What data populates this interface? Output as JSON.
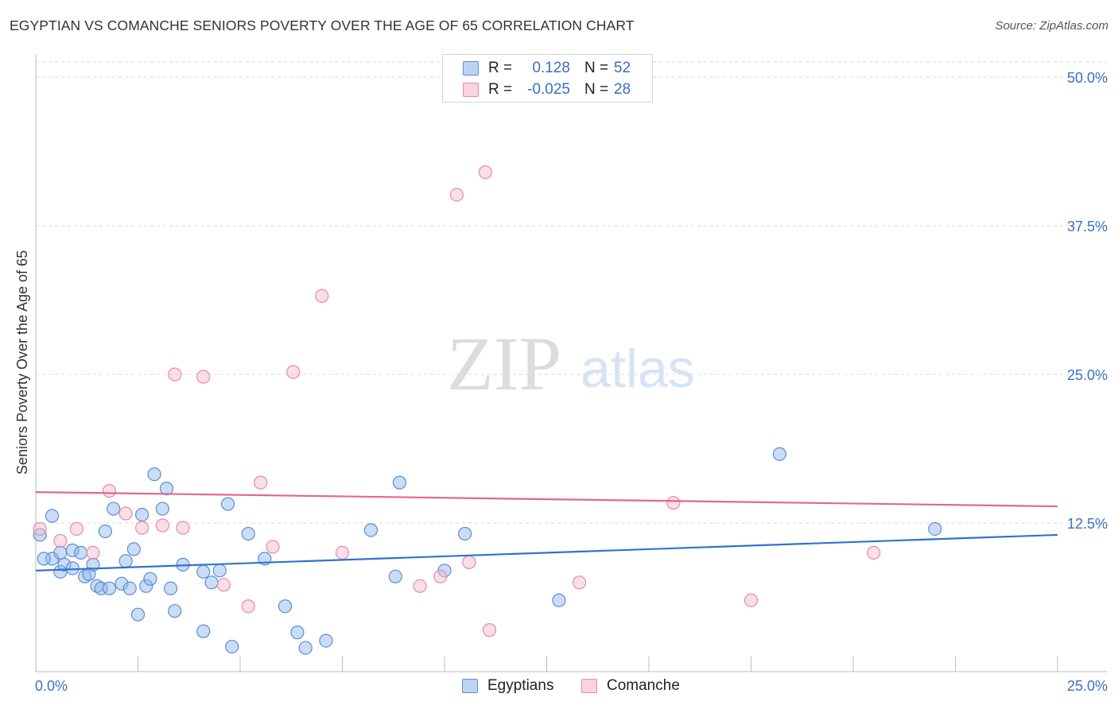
{
  "header": {
    "title": "EGYPTIAN VS COMANCHE SENIORS POVERTY OVER THE AGE OF 65 CORRELATION CHART",
    "source": "Source: ZipAtlas.com"
  },
  "watermark": {
    "zip": "ZIP",
    "atlas": "atlas"
  },
  "legend": {
    "rows": [
      {
        "r_label": "R =",
        "r_value": "0.128",
        "n_label": "N =",
        "n_value": "52"
      },
      {
        "r_label": "R =",
        "r_value": "-0.025",
        "n_label": "N =",
        "n_value": "28"
      }
    ]
  },
  "chart_data": {
    "type": "scatter",
    "ylabel": "Seniors Poverty Over the Age of 65",
    "xlim": [
      0,
      25
    ],
    "ylim": [
      0,
      50
    ],
    "x_tick_labels": [
      "0.0%",
      "25.0%"
    ],
    "y_ticks": [
      12.5,
      25.0,
      37.5,
      50.0
    ],
    "y_tick_labels": [
      "12.5%",
      "25.0%",
      "37.5%",
      "50.0%"
    ],
    "grid": "horizontal dashed",
    "legend_position": "top-center",
    "series": [
      {
        "name": "Egyptians",
        "color": "#8ab4e8",
        "edge": "#5b8ed4",
        "line_color": "#2f74cc",
        "trend": [
          [
            0,
            8.5
          ],
          [
            25,
            11.5
          ]
        ],
        "points": [
          [
            0.1,
            11.5
          ],
          [
            0.4,
            9.5
          ],
          [
            0.6,
            10.0
          ],
          [
            0.6,
            8.4
          ],
          [
            0.7,
            9.0
          ],
          [
            0.9,
            10.2
          ],
          [
            0.9,
            8.7
          ],
          [
            1.1,
            10.0
          ],
          [
            1.2,
            8.0
          ],
          [
            1.3,
            8.2
          ],
          [
            1.4,
            9.0
          ],
          [
            1.5,
            7.2
          ],
          [
            1.6,
            7.0
          ],
          [
            1.7,
            11.8
          ],
          [
            1.8,
            7.0
          ],
          [
            1.9,
            13.7
          ],
          [
            2.1,
            7.4
          ],
          [
            2.2,
            9.3
          ],
          [
            2.3,
            7.0
          ],
          [
            2.4,
            10.3
          ],
          [
            2.5,
            4.8
          ],
          [
            2.6,
            13.2
          ],
          [
            2.7,
            7.2
          ],
          [
            2.8,
            7.8
          ],
          [
            2.9,
            16.6
          ],
          [
            3.1,
            13.7
          ],
          [
            3.2,
            15.4
          ],
          [
            3.3,
            7.0
          ],
          [
            3.4,
            5.1
          ],
          [
            3.6,
            9.0
          ],
          [
            4.1,
            3.4
          ],
          [
            4.1,
            8.4
          ],
          [
            4.3,
            7.5
          ],
          [
            4.5,
            8.5
          ],
          [
            4.7,
            14.1
          ],
          [
            4.8,
            2.1
          ],
          [
            5.2,
            11.6
          ],
          [
            5.6,
            9.5
          ],
          [
            6.1,
            5.5
          ],
          [
            6.4,
            3.3
          ],
          [
            6.6,
            2.0
          ],
          [
            7.1,
            2.6
          ],
          [
            8.2,
            11.9
          ],
          [
            8.8,
            8.0
          ],
          [
            8.9,
            15.9
          ],
          [
            10.0,
            8.5
          ],
          [
            10.5,
            11.6
          ],
          [
            12.8,
            6.0
          ],
          [
            18.2,
            18.3
          ],
          [
            22.0,
            12.0
          ],
          [
            0.4,
            13.1
          ],
          [
            0.2,
            9.5
          ]
        ]
      },
      {
        "name": "Comanche",
        "color": "#f6b9cb",
        "edge": "#e889a6",
        "line_color": "#e06890",
        "trend": [
          [
            0,
            15.1
          ],
          [
            25,
            13.9
          ]
        ],
        "points": [
          [
            0.1,
            12.0
          ],
          [
            0.6,
            11.0
          ],
          [
            1.0,
            12.0
          ],
          [
            1.4,
            10.0
          ],
          [
            1.8,
            15.2
          ],
          [
            2.2,
            13.3
          ],
          [
            2.6,
            12.1
          ],
          [
            3.1,
            12.3
          ],
          [
            3.4,
            25.0
          ],
          [
            3.6,
            12.1
          ],
          [
            4.1,
            24.8
          ],
          [
            4.6,
            7.3
          ],
          [
            5.2,
            5.5
          ],
          [
            5.5,
            15.9
          ],
          [
            5.8,
            10.5
          ],
          [
            6.3,
            25.2
          ],
          [
            7.0,
            31.6
          ],
          [
            7.5,
            10.0
          ],
          [
            9.4,
            7.2
          ],
          [
            9.9,
            8.0
          ],
          [
            10.3,
            40.1
          ],
          [
            10.6,
            9.2
          ],
          [
            11.0,
            42.0
          ],
          [
            11.1,
            3.5
          ],
          [
            13.3,
            7.5
          ],
          [
            15.6,
            14.2
          ],
          [
            17.5,
            6.0
          ],
          [
            20.5,
            10.0
          ]
        ]
      }
    ]
  }
}
